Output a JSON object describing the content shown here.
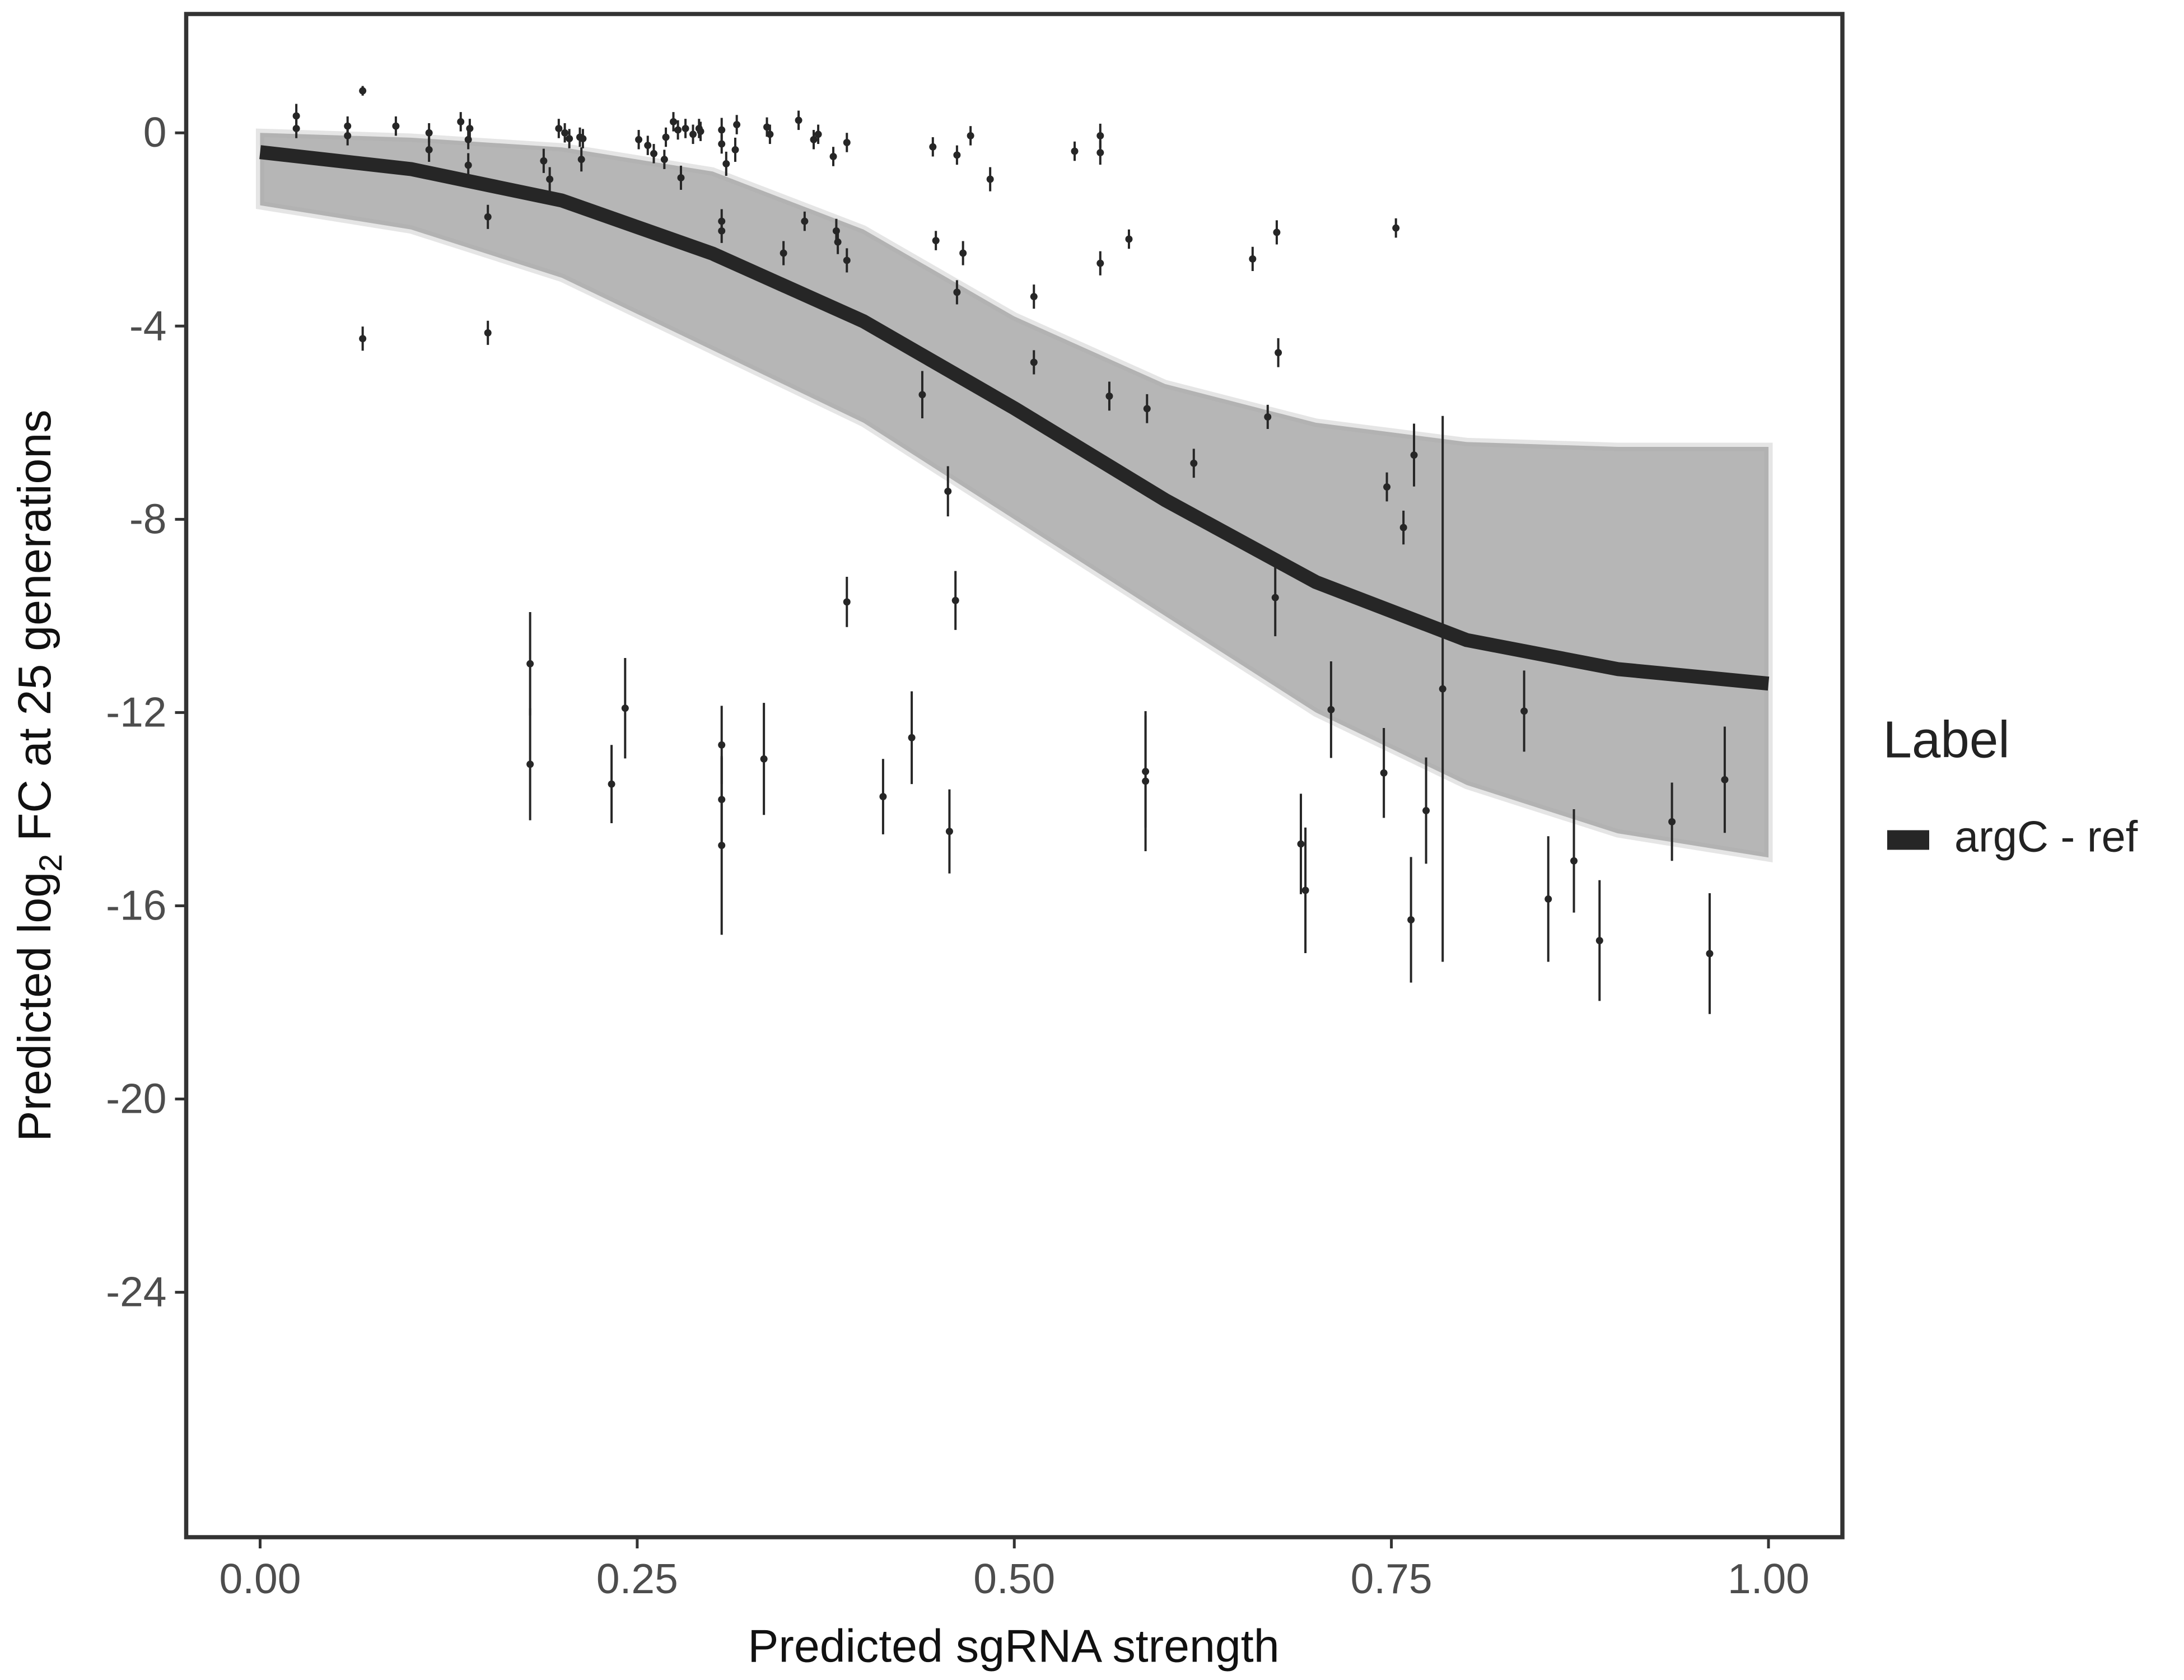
{
  "chart_data": {
    "type": "scatter",
    "xlabel": "Predicted sgRNA strength",
    "ylabel": [
      "Predicted  log",
      "2",
      " FC at 25 generations"
    ],
    "xlim": [
      -0.049,
      1.049
    ],
    "ylim": [
      -29.07,
      2.46
    ],
    "xticks": [
      {
        "value": 0,
        "label": "0.00"
      },
      {
        "value": 0.25,
        "label": "0.25"
      },
      {
        "value": 0.5,
        "label": "0.50"
      },
      {
        "value": 0.75,
        "label": "0.75"
      },
      {
        "value": 1,
        "label": "1.00"
      }
    ],
    "yticks": [
      0,
      -4,
      -8,
      -12,
      -16,
      -20,
      -24
    ],
    "legend": {
      "title": "Label",
      "position": "right"
    },
    "fit": {
      "name": "argC - ref",
      "color": "#262626",
      "x": [
        0,
        0.1,
        0.2,
        0.3,
        0.4,
        0.5,
        0.6,
        0.7,
        0.8,
        0.9,
        1.0
      ],
      "values": [
        -0.4,
        -0.75,
        -1.4,
        -2.5,
        -3.9,
        -5.7,
        -7.6,
        -9.3,
        -10.5,
        -11.1,
        -11.4
      ],
      "band_upper": [
        0,
        -0.1,
        -0.3,
        -0.8,
        -2,
        -3.8,
        -5.2,
        -6,
        -6.4,
        -6.5,
        -6.5
      ],
      "band_lower": [
        -1.5,
        -2,
        -3,
        -4.5,
        -6,
        -8,
        -10,
        -12,
        -13.5,
        -14.5,
        -15
      ],
      "band_color": "#a9a9a9"
    },
    "points": {
      "color": "#262626",
      "x": [
        0.024,
        0.024,
        0.058,
        0.058,
        0.068,
        0.09,
        0.112,
        0.112,
        0.133,
        0.138,
        0.138,
        0.139,
        0.151,
        0.151,
        0.068,
        0.188,
        0.192,
        0.198,
        0.202,
        0.205,
        0.212,
        0.213,
        0.214,
        0.251,
        0.257,
        0.261,
        0.268,
        0.269,
        0.274,
        0.277,
        0.279,
        0.282,
        0.287,
        0.291,
        0.292,
        0.306,
        0.306,
        0.309,
        0.315,
        0.316,
        0.306,
        0.306,
        0.336,
        0.338,
        0.347,
        0.357,
        0.361,
        0.367,
        0.37,
        0.38,
        0.382,
        0.383,
        0.389,
        0.389,
        0.446,
        0.448,
        0.462,
        0.462,
        0.466,
        0.471,
        0.484,
        0.513,
        0.513,
        0.54,
        0.557,
        0.557,
        0.557,
        0.563,
        0.576,
        0.588,
        0.619,
        0.658,
        0.668,
        0.674,
        0.675,
        0.673,
        0.747,
        0.758,
        0.765,
        0.753,
        0.784,
        0.838,
        0.854,
        0.871,
        0.888,
        0.936,
        0.961,
        0.971,
        0.71,
        0.745,
        0.763,
        0.773,
        0.69,
        0.693,
        0.587,
        0.587,
        0.439,
        0.456,
        0.461,
        0.457,
        0.432,
        0.413,
        0.389,
        0.334,
        0.306,
        0.306,
        0.306,
        0.242,
        0.233,
        0.179,
        0.179
      ],
      "values": [
        0.35,
        0.09,
        0.14,
        -0.06,
        0.87,
        0.14,
        0,
        -0.35,
        0.23,
        -0.14,
        -0.67,
        0.09,
        -1.74,
        -4.14,
        -4.26,
        -0.58,
        -0.96,
        0.09,
        0,
        -0.12,
        -0.09,
        -0.55,
        -0.12,
        -0.14,
        -0.26,
        -0.43,
        -0.55,
        -0.09,
        0.23,
        0.06,
        -0.93,
        0.09,
        -0.03,
        0.09,
        0.03,
        0.06,
        -0.23,
        -0.64,
        -0.35,
        0.17,
        -1.83,
        -2.03,
        0.12,
        -0.03,
        -2.49,
        0.26,
        -1.83,
        -0.14,
        -0.03,
        -0.49,
        -2.03,
        -2.26,
        -0.2,
        -2.64,
        -0.29,
        -2.23,
        -0.46,
        -3.3,
        -2.49,
        -0.06,
        -0.96,
        -3.39,
        -4.75,
        -0.38,
        -0.06,
        -0.41,
        -2.7,
        -5.45,
        -2.2,
        -5.71,
        -6.84,
        -2.61,
        -5.88,
        -2.06,
        -4.55,
        -9.62,
        -7.33,
        -8.17,
        -6.67,
        -1.97,
        -11.51,
        -11.97,
        -15.86,
        -15.07,
        -16.72,
        -14.26,
        -16.99,
        -13.39,
        -11.94,
        -13.25,
        -16.29,
        -14.03,
        -14.72,
        -15.68,
        -13.22,
        -13.42,
        -5.42,
        -7.42,
        -9.68,
        -14.46,
        -12.52,
        -13.74,
        -9.71,
        -12.96,
        -12.67,
        -13.8,
        -14.75,
        -11.91,
        -13.48,
        -10.99,
        -13.07
      ],
      "errors": [
        0.25,
        0.2,
        0.2,
        0.2,
        0.1,
        0.2,
        0.2,
        0.25,
        0.2,
        0.2,
        0.25,
        0.2,
        0.25,
        0.25,
        0.25,
        0.25,
        0.25,
        0.2,
        0.2,
        0.2,
        0.2,
        0.25,
        0.2,
        0.2,
        0.2,
        0.2,
        0.2,
        0.2,
        0.2,
        0.2,
        0.25,
        0.2,
        0.2,
        0.2,
        0.2,
        0.25,
        0.2,
        0.25,
        0.25,
        0.2,
        0.25,
        0.25,
        0.2,
        0.2,
        0.25,
        0.2,
        0.2,
        0.2,
        0.2,
        0.2,
        0.25,
        0.25,
        0.2,
        0.25,
        0.2,
        0.2,
        0.2,
        0.25,
        0.25,
        0.2,
        0.25,
        0.25,
        0.25,
        0.2,
        0.25,
        0.25,
        0.25,
        0.3,
        0.2,
        0.3,
        0.3,
        0.25,
        0.25,
        0.25,
        0.3,
        0.8,
        0.3,
        0.35,
        0.65,
        0.2,
        5.65,
        0.84,
        1.3,
        1.07,
        1.25,
        0.81,
        1.25,
        1.1,
        1.0,
        0.93,
        1.3,
        1.1,
        1.04,
        1.3,
        1.16,
        1.45,
        0.49,
        0.52,
        0.61,
        0.87,
        0.96,
        0.78,
        0.52,
        1.16,
        0.81,
        0.87,
        1.85,
        1.04,
        0.81,
        1.07,
        1.16
      ]
    }
  }
}
